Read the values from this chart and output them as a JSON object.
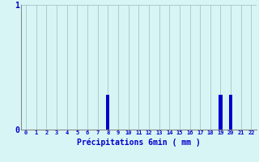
{
  "hours": [
    0,
    1,
    2,
    3,
    4,
    5,
    6,
    7,
    8,
    9,
    10,
    11,
    12,
    13,
    14,
    15,
    16,
    17,
    18,
    19,
    20,
    21,
    22
  ],
  "values": [
    0,
    0,
    0,
    0,
    0,
    0,
    0,
    0,
    0.28,
    0,
    0,
    0,
    0,
    0,
    0,
    0,
    0,
    0,
    0,
    0.28,
    0.28,
    0,
    0
  ],
  "bar_color": "#0000cc",
  "bg_color": "#d8f5f5",
  "grid_color": "#aacccc",
  "axis_color": "#888888",
  "text_color": "#0000cc",
  "xlabel": "Précipitations 6min ( mm )",
  "ylim": [
    0,
    1.0
  ],
  "xlim": [
    -0.5,
    22.5
  ],
  "yticks": [
    0,
    1
  ],
  "ytick_labels": [
    "0",
    "1"
  ]
}
